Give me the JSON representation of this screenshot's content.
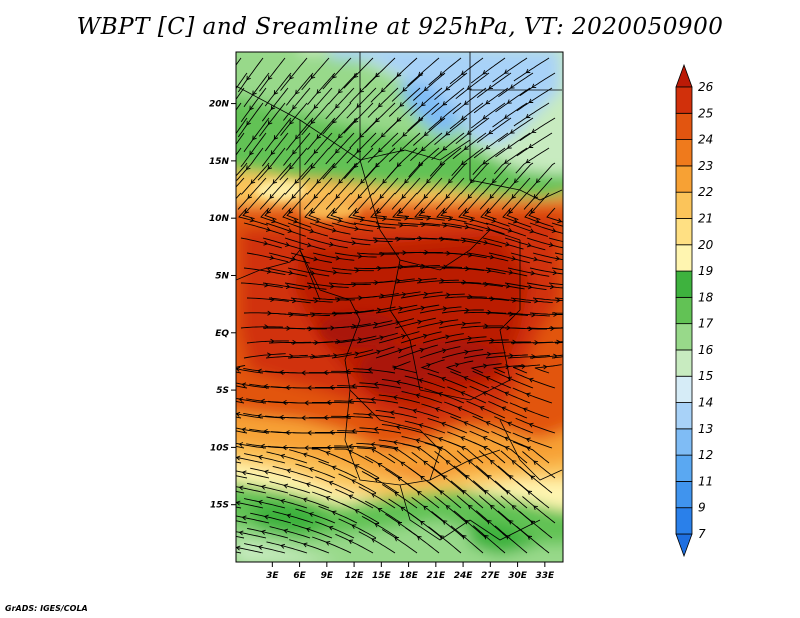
{
  "title": "WBPT [C] and Sreamline at 925hPa, VT: 2020050900",
  "credit": "GrADS: IGES/COLA",
  "map": {
    "lon_range": [
      -1,
      35
    ],
    "lat_range": [
      -20,
      24.5
    ],
    "x_ticks": [
      3,
      6,
      9,
      12,
      15,
      18,
      21,
      24,
      27,
      30,
      33
    ],
    "x_tick_labels": [
      "3E",
      "6E",
      "9E",
      "12E",
      "15E",
      "18E",
      "21E",
      "24E",
      "27E",
      "30E",
      "33E"
    ],
    "y_ticks": [
      20,
      15,
      10,
      5,
      0,
      -5,
      -10,
      -15
    ],
    "y_tick_labels": [
      "20N",
      "15N",
      "10N",
      "5N",
      "EQ",
      "5S",
      "10S",
      "15S"
    ]
  },
  "colorbar": {
    "levels": [
      "7",
      "9",
      "11",
      "12",
      "13",
      "14",
      "15",
      "16",
      "17",
      "18",
      "19",
      "20",
      "21",
      "22",
      "23",
      "24",
      "25",
      "26"
    ],
    "colors": [
      "#1e6fe0",
      "#2a80ea",
      "#4094ee",
      "#5aa8f2",
      "#7fbcf5",
      "#a8d2f8",
      "#d6ecf7",
      "#c8ebc0",
      "#98d98a",
      "#62c255",
      "#3eb23e",
      "#fff5b0",
      "#ffe083",
      "#fbc45a",
      "#f7a134",
      "#ef7a1c",
      "#e25510",
      "#d1300b",
      "#bb1a06"
    ]
  }
}
